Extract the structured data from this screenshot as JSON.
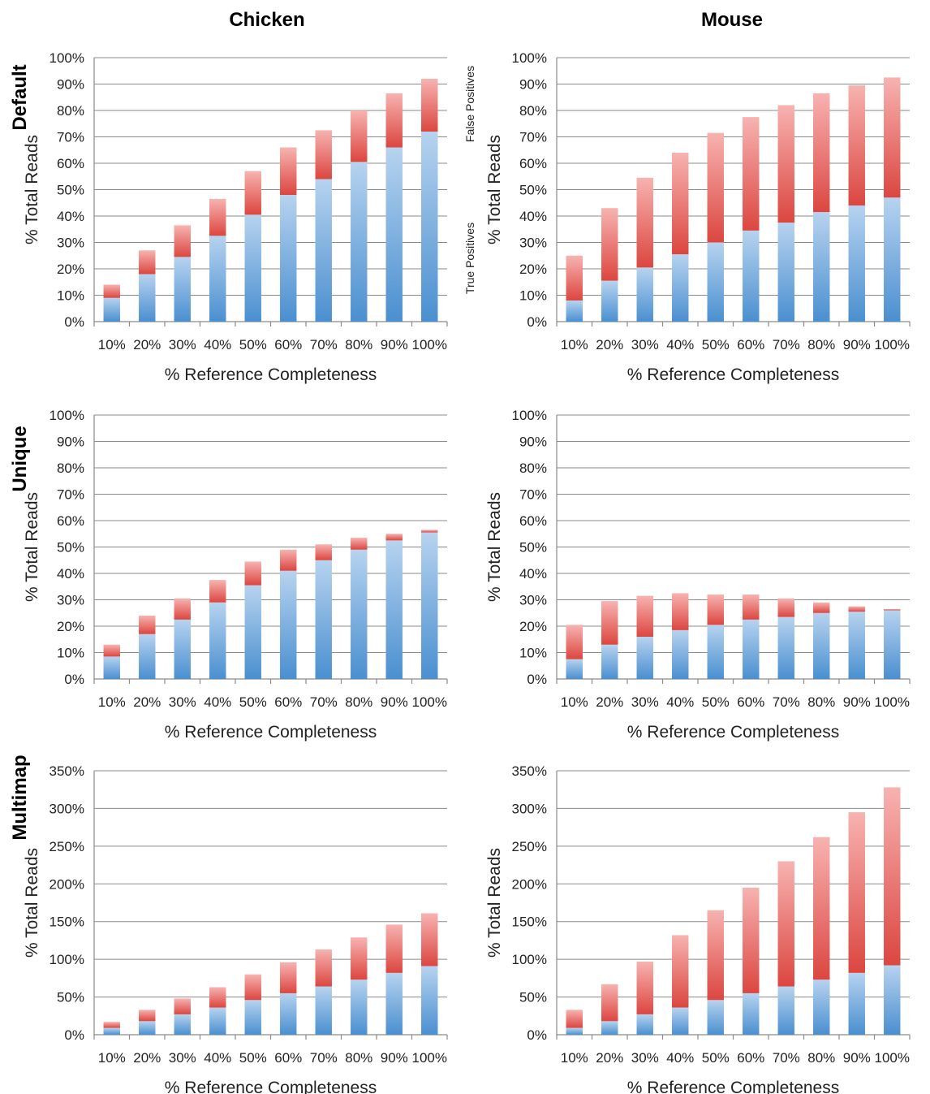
{
  "columns": [
    "Chicken",
    "Mouse"
  ],
  "rows": [
    "Default",
    "Unique",
    "Multimap"
  ],
  "legend": {
    "false_positives": "False Positives",
    "true_positives": "True Positives"
  },
  "colors": {
    "tp_top": "#b7d3ef",
    "tp_bottom": "#4a8fd0",
    "fp_top": "#f7b3b1",
    "fp_bottom": "#dc4640"
  },
  "chart_data": [
    {
      "type": "bar",
      "stacked": true,
      "column": "Chicken",
      "row": "Default",
      "categories": [
        "10%",
        "20%",
        "30%",
        "40%",
        "50%",
        "60%",
        "70%",
        "80%",
        "90%",
        "100%"
      ],
      "series": [
        {
          "name": "True Positives",
          "values": [
            9,
            18,
            24.5,
            32.5,
            40.5,
            48,
            54,
            60.5,
            66,
            72
          ]
        },
        {
          "name": "False Positives",
          "values": [
            5,
            9,
            12,
            14,
            16.5,
            18,
            18.5,
            19.5,
            20.5,
            20
          ]
        }
      ],
      "xlabel": "% Reference Completeness",
      "ylabel": "% Total Reads",
      "ylim": [
        0,
        100
      ],
      "yticks": [
        "0%",
        "10%",
        "20%",
        "30%",
        "40%",
        "50%",
        "60%",
        "70%",
        "80%",
        "90%",
        "100%"
      ],
      "grid": true
    },
    {
      "type": "bar",
      "stacked": true,
      "column": "Mouse",
      "row": "Default",
      "categories": [
        "10%",
        "20%",
        "30%",
        "40%",
        "50%",
        "60%",
        "70%",
        "80%",
        "90%",
        "100%"
      ],
      "series": [
        {
          "name": "True Positives",
          "values": [
            8,
            15.5,
            20.5,
            25.5,
            30,
            34.5,
            37.5,
            41.5,
            44,
            47
          ]
        },
        {
          "name": "False Positives",
          "values": [
            17,
            27.5,
            34,
            38.5,
            41.5,
            43,
            44.5,
            45,
            45.5,
            45.5
          ]
        }
      ],
      "xlabel": "% Reference Completeness",
      "ylabel": "% Total Reads",
      "ylim": [
        0,
        100
      ],
      "yticks": [
        "0%",
        "10%",
        "20%",
        "30%",
        "40%",
        "50%",
        "60%",
        "70%",
        "80%",
        "90%",
        "100%"
      ],
      "grid": true
    },
    {
      "type": "bar",
      "stacked": true,
      "column": "Chicken",
      "row": "Unique",
      "categories": [
        "10%",
        "20%",
        "30%",
        "40%",
        "50%",
        "60%",
        "70%",
        "80%",
        "90%",
        "100%"
      ],
      "series": [
        {
          "name": "True Positives",
          "values": [
            8.5,
            17,
            22.5,
            29,
            35.5,
            41,
            45,
            49,
            52.5,
            55.5
          ]
        },
        {
          "name": "False Positives",
          "values": [
            4.5,
            7,
            8,
            8.5,
            9,
            8,
            6,
            4.5,
            2.5,
            1
          ]
        }
      ],
      "xlabel": "% Reference Completeness",
      "ylabel": "% Total Reads",
      "ylim": [
        0,
        100
      ],
      "yticks": [
        "0%",
        "10%",
        "20%",
        "30%",
        "40%",
        "50%",
        "60%",
        "70%",
        "80%",
        "90%",
        "100%"
      ],
      "grid": true
    },
    {
      "type": "bar",
      "stacked": true,
      "column": "Mouse",
      "row": "Unique",
      "categories": [
        "10%",
        "20%",
        "30%",
        "40%",
        "50%",
        "60%",
        "70%",
        "80%",
        "90%",
        "100%"
      ],
      "series": [
        {
          "name": "True Positives",
          "values": [
            7.5,
            13,
            16,
            18.5,
            20.5,
            22.5,
            23.5,
            25,
            25.5,
            26
          ]
        },
        {
          "name": "False Positives",
          "values": [
            13,
            16.5,
            15.5,
            14,
            11.5,
            9.5,
            7,
            4,
            2,
            0.5
          ]
        }
      ],
      "xlabel": "% Reference Completeness",
      "ylabel": "% Total Reads",
      "ylim": [
        0,
        100
      ],
      "yticks": [
        "0%",
        "10%",
        "20%",
        "30%",
        "40%",
        "50%",
        "60%",
        "70%",
        "80%",
        "90%",
        "100%"
      ],
      "grid": true
    },
    {
      "type": "bar",
      "stacked": true,
      "column": "Chicken",
      "row": "Multimap",
      "categories": [
        "10%",
        "20%",
        "30%",
        "40%",
        "50%",
        "60%",
        "70%",
        "80%",
        "90%",
        "100%"
      ],
      "series": [
        {
          "name": "True Positives",
          "values": [
            9,
            18,
            27,
            36,
            46,
            55,
            64,
            73,
            82,
            91
          ]
        },
        {
          "name": "False Positives",
          "values": [
            8,
            15,
            21,
            27,
            34,
            41,
            49,
            56,
            64,
            70
          ]
        }
      ],
      "xlabel": "% Reference Completeness",
      "ylabel": "% Total Reads",
      "ylim": [
        0,
        350
      ],
      "yticks": [
        "0%",
        "50%",
        "100%",
        "150%",
        "200%",
        "250%",
        "300%",
        "350%"
      ],
      "grid": true
    },
    {
      "type": "bar",
      "stacked": true,
      "column": "Mouse",
      "row": "Multimap",
      "categories": [
        "10%",
        "20%",
        "30%",
        "40%",
        "50%",
        "60%",
        "70%",
        "80%",
        "90%",
        "100%"
      ],
      "series": [
        {
          "name": "True Positives",
          "values": [
            9,
            18,
            27,
            36,
            46,
            55,
            64,
            73,
            82,
            92
          ]
        },
        {
          "name": "False Positives",
          "values": [
            24,
            49,
            70,
            96,
            119,
            140,
            166,
            189,
            213,
            236
          ]
        }
      ],
      "xlabel": "% Reference Completeness",
      "ylabel": "% Total Reads",
      "ylim": [
        0,
        350
      ],
      "yticks": [
        "0%",
        "50%",
        "100%",
        "150%",
        "200%",
        "250%",
        "300%",
        "350%"
      ],
      "grid": true
    }
  ]
}
